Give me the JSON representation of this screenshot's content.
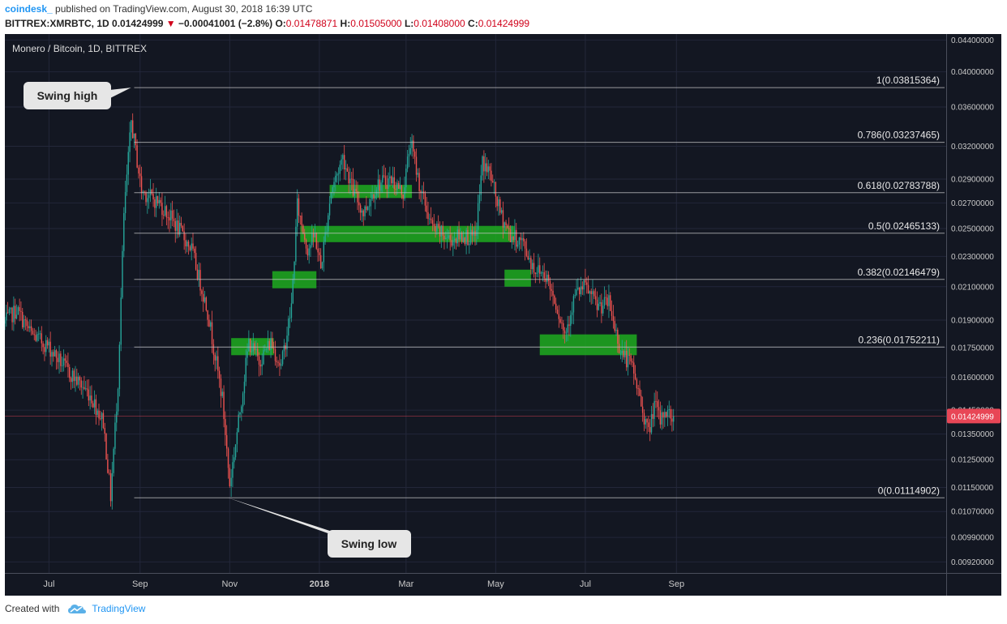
{
  "header": {
    "author": "coindesk_",
    "published": "published on TradingView.com, August 30, 2018 16:39 UTC",
    "symbol": "BITTREX:XMRBTC, 1D",
    "last": "0.01424999",
    "change": "−0.00041001 (−2.8%)",
    "open_label": "O:",
    "open": "0.01478871",
    "high_label": "H:",
    "high": "0.01505000",
    "low_label": "L:",
    "low": "0.01408000",
    "close_label": "C:",
    "close": "0.01424999"
  },
  "footer": {
    "created_with": "Created with",
    "brand": "TradingView"
  },
  "colors": {
    "background": "#131722",
    "up": "#26a69a",
    "down": "#ef5350",
    "zone": "#1fb81f",
    "price_tag": "#e84656"
  },
  "chart_data": {
    "type": "candlestick",
    "title": "Monero / Bitcoin, 1D, BITTREX",
    "x_ticks": [
      "Jul",
      "Sep",
      "Nov",
      "2018",
      "Mar",
      "May",
      "Jul",
      "Sep"
    ],
    "y_ticks": [
      "0.04400000",
      "0.04000000",
      "0.03600000",
      "0.03200000",
      "0.02900000",
      "0.02700000",
      "0.02500000",
      "0.02300000",
      "0.02100000",
      "0.01900000",
      "0.01750000",
      "0.01600000",
      "0.01450000",
      "0.01350000",
      "0.01250000",
      "0.01150000",
      "0.01070000",
      "0.00990000",
      "0.00920000"
    ],
    "y_scale": "log",
    "ylim": [
      0.0089,
      0.0448
    ],
    "last_price": "0.01424999",
    "fib_levels": [
      {
        "label": "1(0.03815364)",
        "value": 0.03815364
      },
      {
        "label": "0.786(0.03237465)",
        "value": 0.03237465
      },
      {
        "label": "0.618(0.02783788)",
        "value": 0.02783788
      },
      {
        "label": "0.5(0.02465133)",
        "value": 0.02465133
      },
      {
        "label": "0.382(0.02146479)",
        "value": 0.02146479
      },
      {
        "label": "0.236(0.01752211)",
        "value": 0.01752211
      },
      {
        "label": "0(0.01114902)",
        "value": 0.01114902
      }
    ],
    "annotations": {
      "swing_high": "Swing high",
      "swing_low": "Swing low"
    },
    "anchors": [
      {
        "date": "2017-06-01",
        "price": 0.0188
      },
      {
        "date": "2017-06-10",
        "price": 0.0196
      },
      {
        "date": "2017-06-20",
        "price": 0.0182
      },
      {
        "date": "2017-07-01",
        "price": 0.0176
      },
      {
        "date": "2017-07-15",
        "price": 0.0163
      },
      {
        "date": "2017-07-30",
        "price": 0.0152
      },
      {
        "date": "2017-08-08",
        "price": 0.014
      },
      {
        "date": "2017-08-13",
        "price": 0.0112
      },
      {
        "date": "2017-08-18",
        "price": 0.0158
      },
      {
        "date": "2017-08-22",
        "price": 0.026
      },
      {
        "date": "2017-08-27",
        "price": 0.0345
      },
      {
        "date": "2017-09-03",
        "price": 0.028
      },
      {
        "date": "2017-09-15",
        "price": 0.027
      },
      {
        "date": "2017-09-25",
        "price": 0.0255
      },
      {
        "date": "2017-10-07",
        "price": 0.0235
      },
      {
        "date": "2017-10-18",
        "price": 0.0195
      },
      {
        "date": "2017-10-28",
        "price": 0.015
      },
      {
        "date": "2017-11-02",
        "price": 0.0116
      },
      {
        "date": "2017-11-08",
        "price": 0.014
      },
      {
        "date": "2017-11-15",
        "price": 0.0178
      },
      {
        "date": "2017-11-22",
        "price": 0.0168
      },
      {
        "date": "2017-11-30",
        "price": 0.0178
      },
      {
        "date": "2017-12-07",
        "price": 0.0165
      },
      {
        "date": "2017-12-14",
        "price": 0.0198
      },
      {
        "date": "2017-12-18",
        "price": 0.0268
      },
      {
        "date": "2017-12-25",
        "price": 0.0235
      },
      {
        "date": "2017-12-30",
        "price": 0.0245
      },
      {
        "date": "2018-01-03",
        "price": 0.0222
      },
      {
        "date": "2018-01-10",
        "price": 0.028
      },
      {
        "date": "2018-01-18",
        "price": 0.031
      },
      {
        "date": "2018-01-25",
        "price": 0.028
      },
      {
        "date": "2018-02-01",
        "price": 0.0262
      },
      {
        "date": "2018-02-10",
        "price": 0.0285
      },
      {
        "date": "2018-02-20",
        "price": 0.029
      },
      {
        "date": "2018-02-28",
        "price": 0.0278
      },
      {
        "date": "2018-03-05",
        "price": 0.0325
      },
      {
        "date": "2018-03-12",
        "price": 0.028
      },
      {
        "date": "2018-03-20",
        "price": 0.025
      },
      {
        "date": "2018-04-01",
        "price": 0.0242
      },
      {
        "date": "2018-04-10",
        "price": 0.0245
      },
      {
        "date": "2018-04-18",
        "price": 0.0242
      },
      {
        "date": "2018-04-23",
        "price": 0.0305
      },
      {
        "date": "2018-04-28",
        "price": 0.0295
      },
      {
        "date": "2018-05-05",
        "price": 0.0262
      },
      {
        "date": "2018-05-12",
        "price": 0.0245
      },
      {
        "date": "2018-05-20",
        "price": 0.024
      },
      {
        "date": "2018-05-28",
        "price": 0.0222
      },
      {
        "date": "2018-06-05",
        "price": 0.0218
      },
      {
        "date": "2018-06-12",
        "price": 0.02
      },
      {
        "date": "2018-06-18",
        "price": 0.0182
      },
      {
        "date": "2018-06-25",
        "price": 0.0205
      },
      {
        "date": "2018-07-02",
        "price": 0.021
      },
      {
        "date": "2018-07-10",
        "price": 0.0198
      },
      {
        "date": "2018-07-18",
        "price": 0.02
      },
      {
        "date": "2018-07-26",
        "price": 0.0173
      },
      {
        "date": "2018-08-03",
        "price": 0.0165
      },
      {
        "date": "2018-08-10",
        "price": 0.0145
      },
      {
        "date": "2018-08-14",
        "price": 0.0135
      },
      {
        "date": "2018-08-18",
        "price": 0.0148
      },
      {
        "date": "2018-08-22",
        "price": 0.014
      },
      {
        "date": "2018-08-25",
        "price": 0.0145
      },
      {
        "date": "2018-08-30",
        "price": 0.0142
      }
    ],
    "support_zones": [
      {
        "from": "2017-11-02",
        "to": "2017-12-01",
        "low": 0.0171,
        "high": 0.018
      },
      {
        "from": "2017-11-30",
        "to": "2017-12-30",
        "low": 0.0209,
        "high": 0.022
      },
      {
        "from": "2017-12-19",
        "to": "2018-05-14",
        "low": 0.024,
        "high": 0.0252
      },
      {
        "from": "2018-01-08",
        "to": "2018-03-05",
        "low": 0.0274,
        "high": 0.0285
      },
      {
        "from": "2018-05-07",
        "to": "2018-05-25",
        "low": 0.021,
        "high": 0.0221
      },
      {
        "from": "2018-05-31",
        "to": "2018-08-05",
        "low": 0.0171,
        "high": 0.0182
      }
    ]
  }
}
